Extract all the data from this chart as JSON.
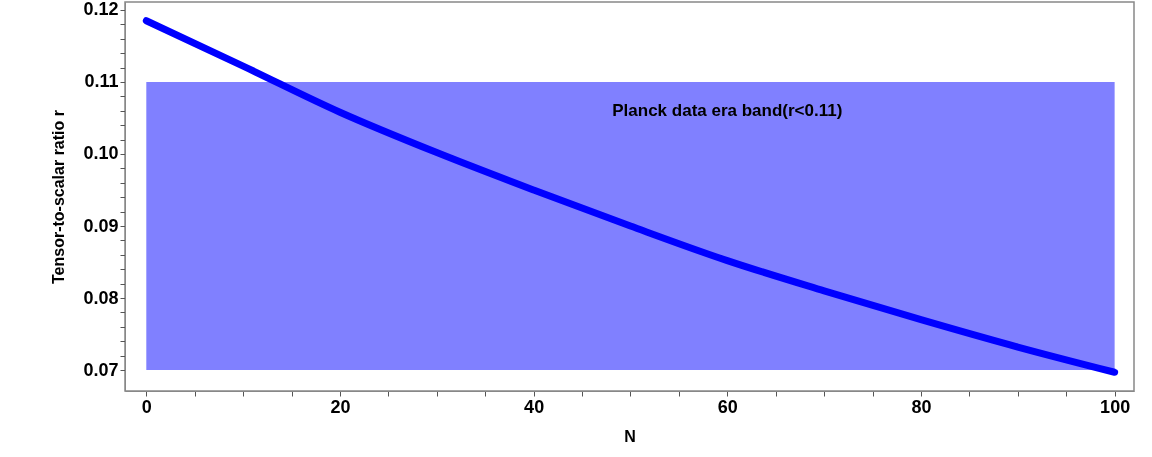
{
  "chart_data": {
    "type": "line",
    "xlabel": "N",
    "ylabel": "Tensor-to-scalar ratio r",
    "x": [
      0,
      10,
      20,
      30,
      40,
      50,
      60,
      70,
      80,
      90,
      100
    ],
    "series": [
      {
        "color": "#0000ff",
        "values": [
          0.1185,
          0.1122,
          0.1058,
          0.1002,
          0.095,
          0.09,
          0.0852,
          0.081,
          0.077,
          0.0732,
          0.0697
        ]
      }
    ],
    "xlim": [
      -2.2,
      102
    ],
    "ylim": [
      0.0671,
      0.1211
    ],
    "xticks": [
      0,
      {
        "value": 5,
        "label": null
      },
      {
        "value": 10,
        "label": null
      },
      {
        "value": 15,
        "label": null
      },
      20,
      {
        "value": 25,
        "label": null
      },
      {
        "value": 30,
        "label": null
      },
      {
        "value": 35,
        "label": null
      },
      40,
      {
        "value": 45,
        "label": null
      },
      {
        "value": 50,
        "label": null
      },
      {
        "value": 55,
        "label": null
      },
      60,
      {
        "value": 65,
        "label": null
      },
      {
        "value": 70,
        "label": null
      },
      {
        "value": 75,
        "label": null
      },
      80,
      {
        "value": 85,
        "label": null
      },
      {
        "value": 90,
        "label": null
      },
      {
        "value": 95,
        "label": null
      },
      100
    ],
    "yticks": [
      {
        "value": 0.07,
        "label": "0.07"
      },
      {
        "value": 0.072,
        "label": null
      },
      {
        "value": 0.074,
        "label": null
      },
      {
        "value": 0.076,
        "label": null
      },
      {
        "value": 0.078,
        "label": null
      },
      {
        "value": 0.08,
        "label": "0.08"
      },
      {
        "value": 0.082,
        "label": null
      },
      {
        "value": 0.084,
        "label": null
      },
      {
        "value": 0.086,
        "label": null
      },
      {
        "value": 0.088,
        "label": null
      },
      {
        "value": 0.09,
        "label": "0.09"
      },
      {
        "value": 0.092,
        "label": null
      },
      {
        "value": 0.094,
        "label": null
      },
      {
        "value": 0.096,
        "label": null
      },
      {
        "value": 0.098,
        "label": null
      },
      {
        "value": 0.1,
        "label": "0.10"
      },
      {
        "value": 0.102,
        "label": null
      },
      {
        "value": 0.104,
        "label": null
      },
      {
        "value": 0.106,
        "label": null
      },
      {
        "value": 0.108,
        "label": null
      },
      {
        "value": 0.11,
        "label": "0.11"
      },
      {
        "value": 0.112,
        "label": null
      },
      {
        "value": 0.114,
        "label": null
      },
      {
        "value": 0.116,
        "label": null
      },
      {
        "value": 0.118,
        "label": null
      },
      {
        "value": 0.12,
        "label": "0.12"
      }
    ],
    "bands": [
      {
        "axis": "y",
        "from": 0.07,
        "to": 0.11,
        "label": "Planck data era band(r<0.11)",
        "color": "#8080ff"
      }
    ],
    "grid": false,
    "line_style": "solid"
  }
}
